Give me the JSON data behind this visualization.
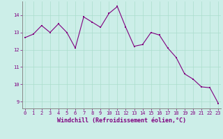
{
  "x": [
    0,
    1,
    2,
    3,
    4,
    5,
    6,
    7,
    8,
    9,
    10,
    11,
    12,
    13,
    14,
    15,
    16,
    17,
    18,
    19,
    20,
    21,
    22,
    23
  ],
  "y": [
    12.7,
    12.9,
    13.4,
    13.0,
    13.5,
    13.0,
    12.1,
    13.9,
    13.6,
    13.3,
    14.1,
    14.5,
    13.3,
    12.2,
    12.3,
    13.0,
    12.85,
    12.1,
    11.55,
    10.6,
    10.3,
    9.85,
    9.8,
    8.9
  ],
  "line_color": "#800080",
  "marker_color": "#800080",
  "bg_color": "#cceee8",
  "grid_color": "#aaddcc",
  "xlabel": "Windchill (Refroidissement éolien,°C)",
  "xlabel_color": "#800080",
  "ylim": [
    8.6,
    14.8
  ],
  "yticks": [
    9,
    10,
    11,
    12,
    13,
    14
  ],
  "xticks": [
    0,
    1,
    2,
    3,
    4,
    5,
    6,
    7,
    8,
    9,
    10,
    11,
    12,
    13,
    14,
    15,
    16,
    17,
    18,
    19,
    20,
    21,
    22,
    23
  ],
  "xlim": [
    -0.3,
    23.3
  ],
  "tick_color": "#800080",
  "tick_fontsize": 5.0,
  "xlabel_fontsize": 6.0,
  "marker_size": 2.0,
  "line_width": 0.8
}
